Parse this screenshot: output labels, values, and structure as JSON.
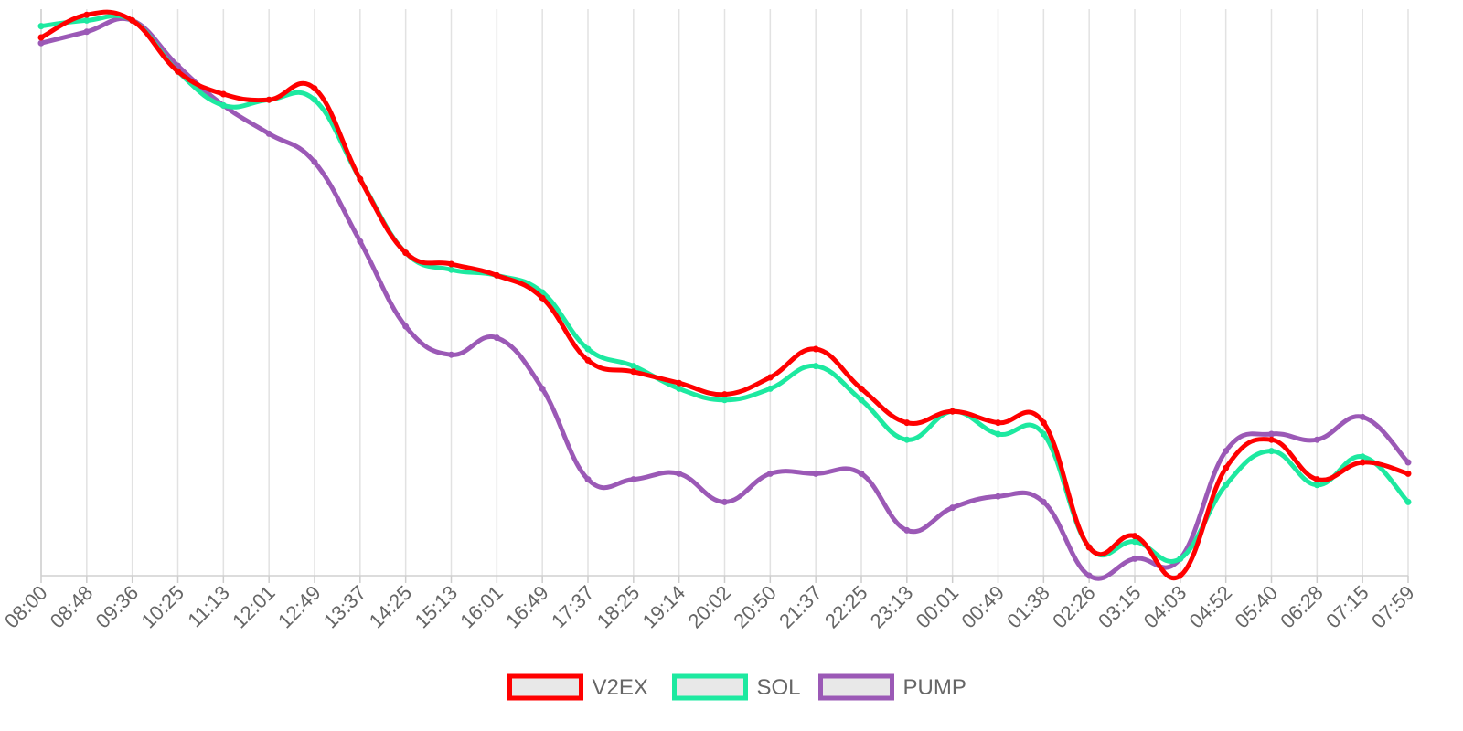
{
  "chart_data": {
    "type": "line",
    "title": "",
    "xlabel": "",
    "ylabel": "",
    "x": [
      "08:00",
      "08:48",
      "09:36",
      "10:25",
      "11:13",
      "12:01",
      "12:49",
      "13:37",
      "14:25",
      "15:13",
      "16:01",
      "16:49",
      "17:37",
      "18:25",
      "19:14",
      "20:02",
      "20:50",
      "21:37",
      "22:25",
      "23:13",
      "00:01",
      "00:49",
      "01:38",
      "02:26",
      "03:15",
      "04:03",
      "04:52",
      "05:40",
      "06:28",
      "07:15",
      "07:59"
    ],
    "y_ticks_visible": false,
    "ylim": [
      0,
      100
    ],
    "grid": {
      "vertical": true,
      "horizontal": false
    },
    "legend": {
      "position": "bottom"
    },
    "series": [
      {
        "name": "V2EX",
        "color": "#ff0000",
        "values": [
          95,
          99,
          98,
          89,
          85,
          84,
          86,
          70,
          57,
          55,
          53,
          49,
          38,
          36,
          34,
          32,
          35,
          40,
          33,
          27,
          29,
          27,
          27,
          5,
          7,
          0,
          19,
          24,
          17,
          20,
          18
        ]
      },
      {
        "name": "SOL",
        "color": "#1de9a0",
        "values": [
          97,
          98,
          98,
          89,
          83,
          84,
          84,
          70,
          57,
          54,
          53,
          50,
          40,
          37,
          33,
          31,
          33,
          37,
          31,
          24,
          29,
          25,
          25,
          5,
          6,
          3,
          16,
          22,
          16,
          21,
          13
        ]
      },
      {
        "name": "PUMP",
        "color": "#9b59b6",
        "values": [
          94,
          96,
          98,
          90,
          83,
          78,
          73,
          59,
          44,
          39,
          42,
          33,
          17,
          17,
          18,
          13,
          18,
          18,
          18,
          8,
          12,
          14,
          13,
          0,
          3,
          3,
          22,
          25,
          24,
          28,
          20
        ]
      }
    ]
  }
}
